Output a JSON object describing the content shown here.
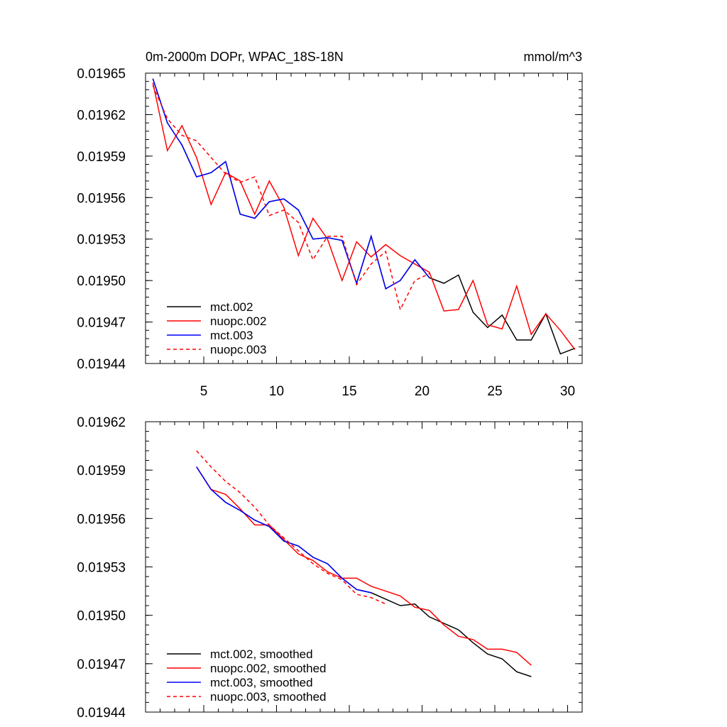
{
  "figure": {
    "title": "0m-2000m DOPr, WPAC_18S-18N",
    "units": "mmol/m^3"
  },
  "chart_data": [
    {
      "type": "line",
      "title": "0m-2000m DOPr, WPAC_18S-18N",
      "units_label": "mmol/m^3",
      "xlim": [
        1,
        31
      ],
      "ylim": [
        0.01944,
        0.01965
      ],
      "xticks": [
        "5",
        "10",
        "15",
        "20",
        "25",
        "30"
      ],
      "yticks": [
        "0.01965",
        "0.01962",
        "0.01959",
        "0.01956",
        "0.01953",
        "0.01950",
        "0.01947",
        "0.01944"
      ],
      "legend_position": "bottom-left",
      "series": [
        {
          "name": "mct.002",
          "color": "#000000",
          "dash": "solid",
          "x": [
            1.5,
            2.5,
            3.5,
            4.5,
            5.5,
            6.5,
            7.5,
            8.5,
            9.5,
            10.5,
            11.5,
            12.5,
            13.5,
            14.5,
            15.5,
            16.5,
            17.5,
            18.5,
            19.5,
            20.5,
            21.5,
            22.5,
            23.5,
            24.5,
            25.5,
            26.5,
            27.5,
            28.5,
            29.5,
            30.5
          ],
          "y": [
            0.019646,
            0.019614,
            0.019598,
            0.019575,
            0.019578,
            0.019586,
            0.019548,
            0.019545,
            0.019557,
            0.019559,
            0.019551,
            0.01953,
            0.019531,
            0.019529,
            0.019498,
            0.019532,
            0.019494,
            0.0195,
            0.019515,
            0.019502,
            0.019498,
            0.019504,
            0.019477,
            0.019466,
            0.019475,
            0.019457,
            0.019457,
            0.019476,
            0.019447,
            0.019451
          ]
        },
        {
          "name": "nuopc.002",
          "color": "#ff0000",
          "dash": "solid",
          "x": [
            1.5,
            2.5,
            3.5,
            4.5,
            5.5,
            6.5,
            7.5,
            8.5,
            9.5,
            10.5,
            11.5,
            12.5,
            13.5,
            14.5,
            15.5,
            16.5,
            17.5,
            18.5,
            19.5,
            20.5,
            21.5,
            22.5,
            23.5,
            24.5,
            25.5,
            26.5,
            27.5,
            28.5,
            29.5,
            30.5
          ],
          "y": [
            0.019643,
            0.019594,
            0.019612,
            0.019589,
            0.019555,
            0.019578,
            0.019572,
            0.019548,
            0.019572,
            0.019553,
            0.019518,
            0.019545,
            0.01953,
            0.0195,
            0.019528,
            0.019517,
            0.019526,
            0.019518,
            0.019512,
            0.019506,
            0.019478,
            0.019479,
            0.0195,
            0.019468,
            0.019465,
            0.019496,
            0.019461,
            0.019476,
            0.019464,
            0.01945
          ]
        },
        {
          "name": "mct.003",
          "color": "#0000ff",
          "dash": "solid",
          "x": [
            1.5,
            2.5,
            3.5,
            4.5,
            5.5,
            6.5,
            7.5,
            8.5,
            9.5,
            10.5,
            11.5,
            12.5,
            13.5,
            14.5,
            15.5,
            16.5,
            17.5,
            18.5,
            19.5,
            20.5
          ],
          "y": [
            0.019646,
            0.019614,
            0.019598,
            0.019575,
            0.019578,
            0.019586,
            0.019548,
            0.019545,
            0.019557,
            0.019559,
            0.019551,
            0.01953,
            0.019531,
            0.019529,
            0.019498,
            0.019532,
            0.019494,
            0.0195,
            0.019515,
            0.019502
          ]
        },
        {
          "name": "nuopc.003",
          "color": "#ff0000",
          "dash": "dashed",
          "x": [
            1.5,
            2.5,
            3.5,
            4.5,
            5.5,
            6.5,
            7.5,
            8.5,
            9.5,
            10.5,
            11.5,
            12.5,
            13.5,
            14.5,
            15.5,
            16.5,
            17.5,
            18.5,
            19.5,
            20.5
          ],
          "y": [
            0.019641,
            0.019617,
            0.019605,
            0.019601,
            0.019589,
            0.019577,
            0.019571,
            0.019575,
            0.019547,
            0.019551,
            0.019542,
            0.019515,
            0.019532,
            0.019532,
            0.019497,
            0.019512,
            0.019521,
            0.019479,
            0.0195,
            0.019505
          ]
        }
      ]
    },
    {
      "type": "line",
      "xlim": [
        1,
        31
      ],
      "ylim": [
        0.01944,
        0.01962
      ],
      "yticks": [
        "0.01962",
        "0.01959",
        "0.01956",
        "0.01953",
        "0.01950",
        "0.01947",
        "0.01944"
      ],
      "legend_position": "bottom-left",
      "series": [
        {
          "name": "mct.002, smoothed",
          "color": "#000000",
          "dash": "solid",
          "x": [
            4.5,
            5.5,
            6.5,
            7.5,
            8.5,
            9.5,
            10.5,
            11.5,
            12.5,
            13.5,
            14.5,
            15.5,
            16.5,
            17.5,
            18.5,
            19.5,
            20.5,
            21.5,
            22.5,
            23.5,
            24.5,
            25.5,
            26.5,
            27.5
          ],
          "y": [
            0.019592,
            0.019578,
            0.01957,
            0.019565,
            0.019559,
            0.019555,
            0.019546,
            0.019543,
            0.019536,
            0.019532,
            0.019523,
            0.019516,
            0.019514,
            0.01951,
            0.019506,
            0.019507,
            0.019499,
            0.019495,
            0.019491,
            0.019483,
            0.019476,
            0.019473,
            0.019465,
            0.019462
          ]
        },
        {
          "name": "nuopc.002, smoothed",
          "color": "#ff0000",
          "dash": "solid",
          "x": [
            4.5,
            5.5,
            6.5,
            7.5,
            8.5,
            9.5,
            10.5,
            11.5,
            12.5,
            13.5,
            14.5,
            15.5,
            16.5,
            17.5,
            18.5,
            19.5,
            20.5,
            21.5,
            22.5,
            23.5,
            24.5,
            25.5,
            26.5,
            27.5
          ],
          "y": [
            0.019592,
            0.019578,
            0.019575,
            0.019566,
            0.019556,
            0.019556,
            0.019547,
            0.019538,
            0.019534,
            0.019527,
            0.019523,
            0.019523,
            0.019518,
            0.019515,
            0.019512,
            0.019505,
            0.019503,
            0.019494,
            0.019487,
            0.019485,
            0.019479,
            0.019479,
            0.019477,
            0.019469
          ]
        },
        {
          "name": "mct.003, smoothed",
          "color": "#0000ff",
          "dash": "solid",
          "x": [
            4.5,
            5.5,
            6.5,
            7.5,
            8.5,
            9.5,
            10.5,
            11.5,
            12.5,
            13.5,
            14.5,
            15.5,
            16.5
          ],
          "y": [
            0.019592,
            0.019578,
            0.01957,
            0.019565,
            0.019559,
            0.019555,
            0.019546,
            0.019543,
            0.019536,
            0.019532,
            0.019523,
            0.019516,
            0.019514
          ]
        },
        {
          "name": "nuopc.003, smoothed",
          "color": "#ff0000",
          "dash": "dashed",
          "x": [
            4.5,
            5.5,
            6.5,
            7.5,
            8.5,
            9.5,
            10.5,
            11.5,
            12.5,
            13.5,
            14.5,
            15.5,
            16.5,
            17.5
          ],
          "y": [
            0.019602,
            0.019592,
            0.019583,
            0.019576,
            0.019567,
            0.019556,
            0.019548,
            0.01954,
            0.019532,
            0.019526,
            0.019522,
            0.019513,
            0.019511,
            0.019507
          ]
        }
      ]
    }
  ]
}
